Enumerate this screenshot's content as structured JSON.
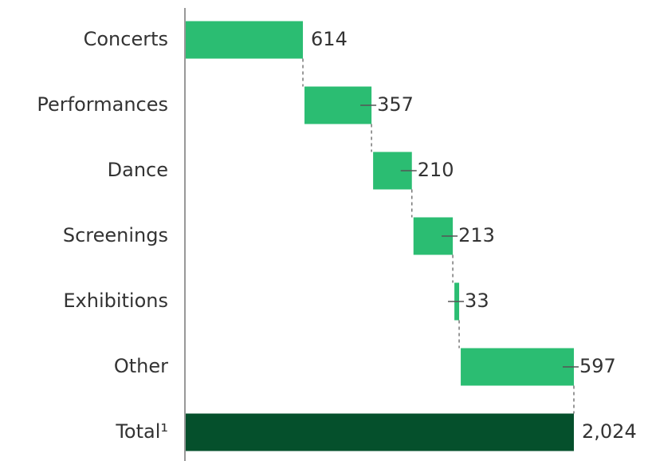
{
  "chart_data": {
    "type": "waterfall",
    "categories": [
      "Concerts",
      "Performances",
      "Dance",
      "Screenings",
      "Exhibitions",
      "Other",
      "Total¹"
    ],
    "values": [
      614,
      357,
      210,
      213,
      33,
      597,
      2024
    ],
    "value_labels": [
      "614",
      "357",
      "210",
      "213",
      "33",
      "597",
      "2,024"
    ],
    "color": "#2bbd72",
    "total_color": "#05502c"
  }
}
